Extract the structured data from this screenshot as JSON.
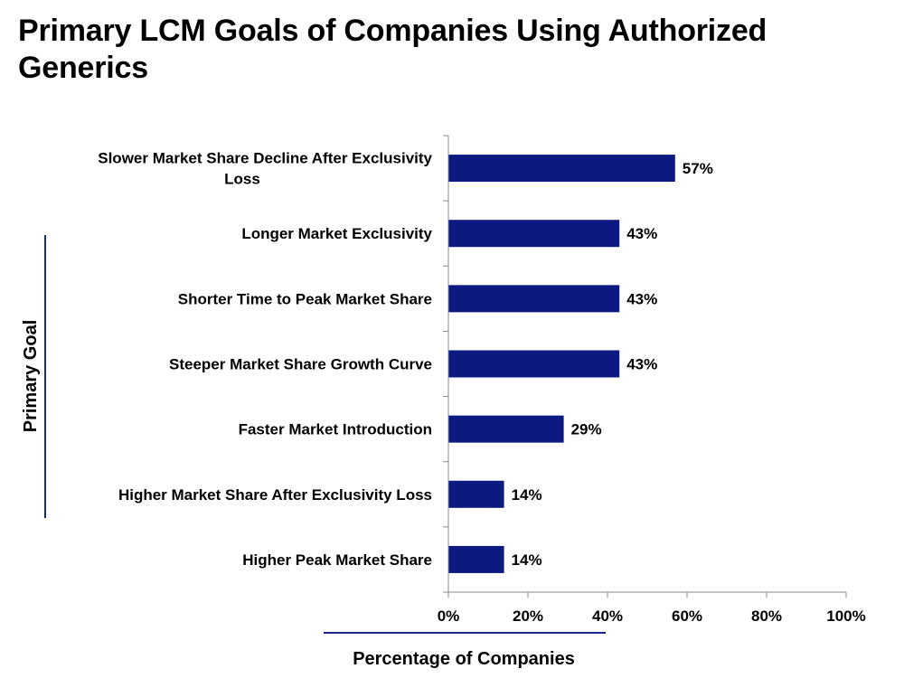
{
  "chart_data": {
    "type": "bar",
    "orientation": "horizontal",
    "title": "Primary LCM Goals of Companies Using Authorized Generics",
    "xlabel": "Percentage of Companies",
    "ylabel": "Primary Goal",
    "categories": [
      [
        "Slower Market Share Decline After Exclusivity",
        "Loss"
      ],
      [
        "Longer Market Exclusivity"
      ],
      [
        "Shorter Time to Peak Market Share"
      ],
      [
        "Steeper Market Share Growth Curve"
      ],
      [
        "Faster Market Introduction"
      ],
      [
        "Higher Market Share After Exclusivity Loss"
      ],
      [
        "Higher Peak Market Share"
      ]
    ],
    "values": [
      57,
      43,
      43,
      43,
      29,
      14,
      14
    ],
    "value_labels": [
      "57%",
      "43%",
      "43%",
      "43%",
      "29%",
      "14%",
      "14%"
    ],
    "xlim": [
      0,
      100
    ],
    "xticks": [
      0,
      20,
      40,
      60,
      80,
      100
    ],
    "xtick_labels": [
      "0%",
      "20%",
      "40%",
      "60%",
      "80%",
      "100%"
    ],
    "grid": false,
    "colors": {
      "bar": "#0c1980",
      "axis": "#888888",
      "accent_line": "#1a2a8c"
    }
  }
}
